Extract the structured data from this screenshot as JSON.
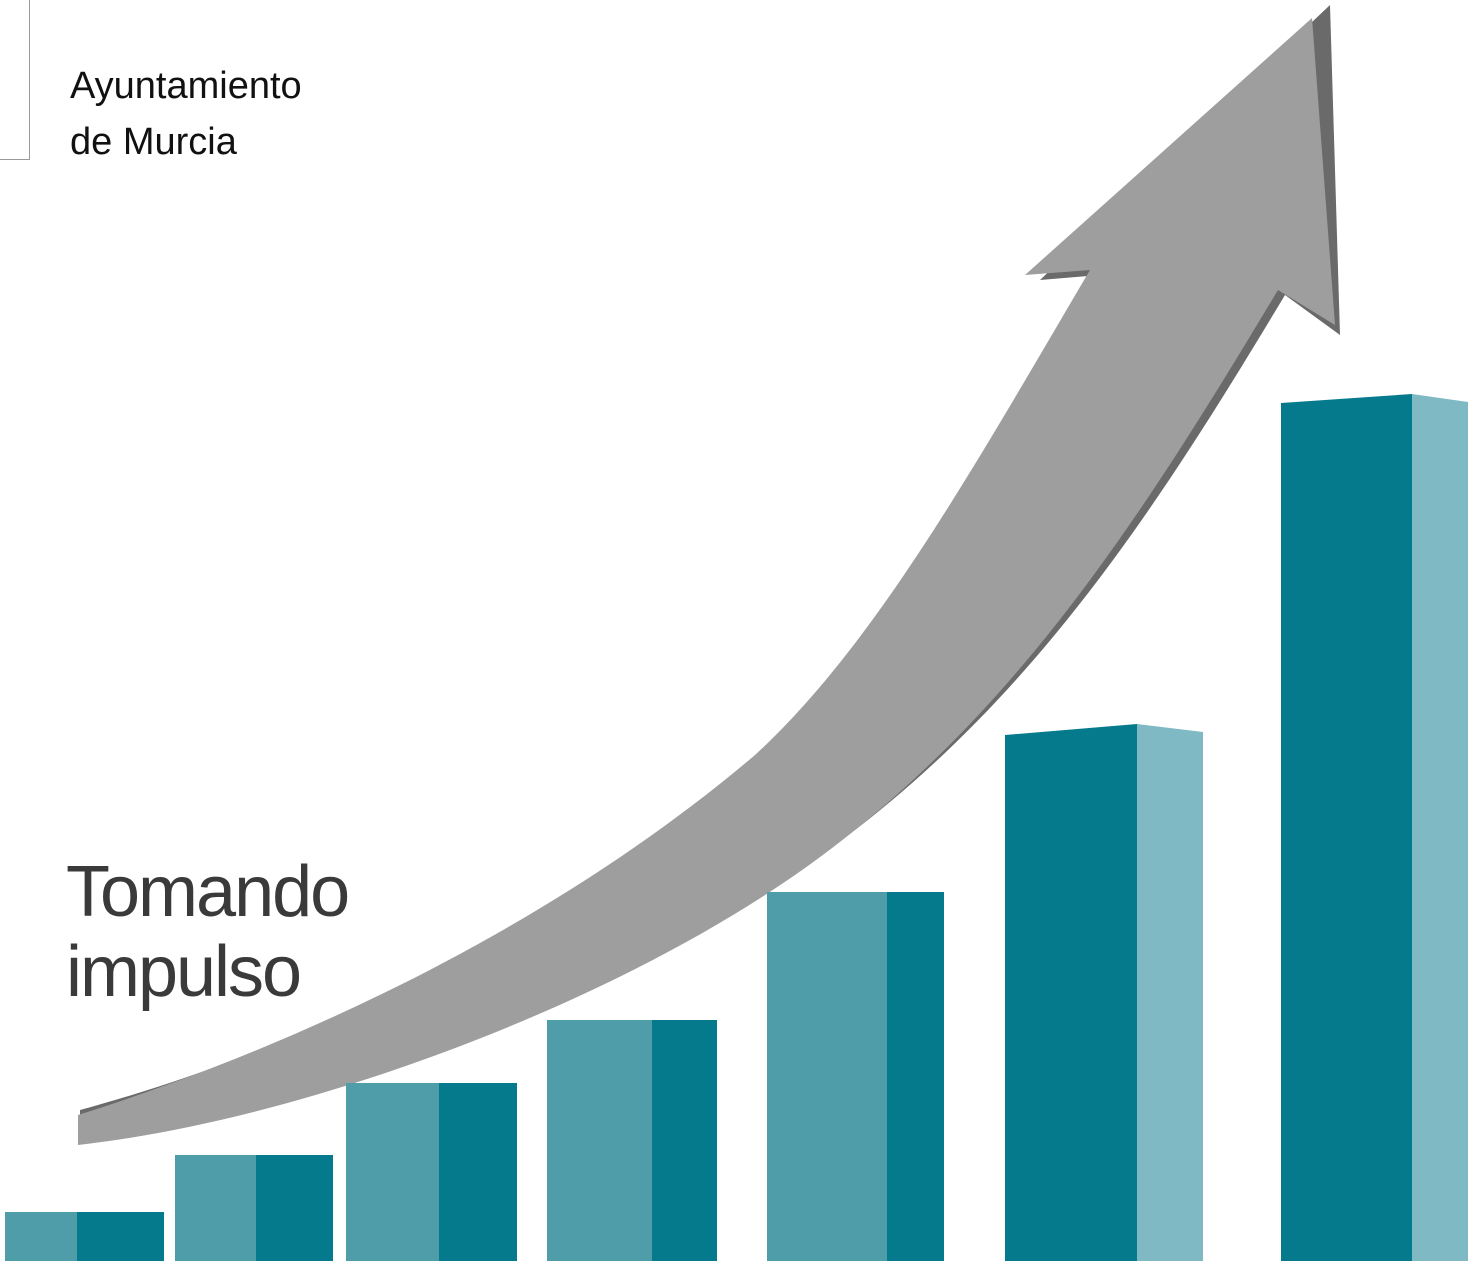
{
  "header": {
    "line1": "Ayuntamiento",
    "line2": "de Murcia"
  },
  "tagline": {
    "line1": "Tomando",
    "line2": "impulso"
  },
  "colors": {
    "bar_dark": "#047a8c",
    "bar_mid": "#4f9da8",
    "bar_light": "#7fb9c3",
    "arrow": "#9e9e9e",
    "arrow_shadow": "#6a6a6a",
    "text": "#3a3a3a"
  },
  "illustration": {
    "bar_count": 7,
    "arrow_direction": "up-right"
  }
}
